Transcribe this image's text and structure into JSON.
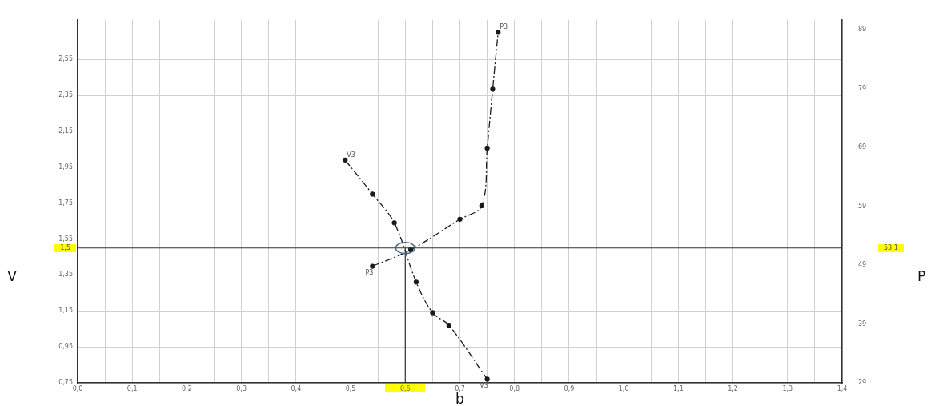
{
  "chart_data": {
    "type": "line",
    "xlabel": "b",
    "ylabel": "V",
    "y2label": "P",
    "xlim": [
      0,
      1.4
    ],
    "xticks": [
      {
        "value": 0,
        "label": "0,0"
      },
      {
        "value": 0.05,
        "label": null
      },
      {
        "value": 0.1,
        "label": "0,1"
      },
      {
        "value": 0.15,
        "label": null
      },
      {
        "value": 0.2,
        "label": "0,2"
      },
      {
        "value": 0.25,
        "label": null
      },
      {
        "value": 0.3,
        "label": "0,3"
      },
      {
        "value": 0.35,
        "label": null
      },
      {
        "value": 0.4,
        "label": "0,4"
      },
      {
        "value": 0.45,
        "label": null
      },
      {
        "value": 0.5,
        "label": "0,5"
      },
      {
        "value": 0.55,
        "label": null
      },
      {
        "value": 0.6,
        "label": "0,6"
      },
      {
        "value": 0.65,
        "label": null
      },
      {
        "value": 0.7,
        "label": "0,7"
      },
      {
        "value": 0.75,
        "label": null
      },
      {
        "value": 0.8,
        "label": "0,8"
      },
      {
        "value": 0.85,
        "label": null
      },
      {
        "value": 0.9,
        "label": "0,9"
      },
      {
        "value": 0.95,
        "label": null
      },
      {
        "value": 1.0,
        "label": "1,0"
      },
      {
        "value": 1.05,
        "label": null
      },
      {
        "value": 1.1,
        "label": "1,1"
      },
      {
        "value": 1.15,
        "label": null
      },
      {
        "value": 1.2,
        "label": "1,2"
      },
      {
        "value": 1.25,
        "label": null
      },
      {
        "value": 1.3,
        "label": "1,3"
      },
      {
        "value": 1.35,
        "label": null
      },
      {
        "value": 1.4,
        "label": "1,4"
      }
    ],
    "ylim": [
      0.75,
      2.77
    ],
    "yticks": [
      {
        "value": 0.75,
        "label": "0,75"
      },
      {
        "value": 0.95,
        "label": "0,95"
      },
      {
        "value": 1.15,
        "label": "1,15"
      },
      {
        "value": 1.35,
        "label": "1,35"
      },
      {
        "value": 1.55,
        "label": "1,55"
      },
      {
        "value": 1.75,
        "label": "1,75"
      },
      {
        "value": 1.95,
        "label": "1,95"
      },
      {
        "value": 2.15,
        "label": "2,15"
      },
      {
        "value": 2.35,
        "label": "2,35"
      },
      {
        "value": 2.55,
        "label": "2,55"
      }
    ],
    "y2lim": [
      29,
      90.7
    ],
    "y2ticks": [
      29,
      39,
      49,
      59,
      69,
      79,
      89
    ],
    "grid": true,
    "legend": false,
    "marker": "circle",
    "line_style": "dashed",
    "ref_lines": [
      {
        "axis": "y",
        "value": 1.5,
        "label": "1,5",
        "color": "#333333"
      },
      {
        "axis": "x",
        "value": 0.6,
        "color": "#333333"
      }
    ],
    "annotations": [
      "53,1"
    ],
    "series": [
      {
        "name": "V3",
        "color": "#1a1a1a",
        "x": [
          0.49,
          0.54,
          0.58,
          0.62,
          0.65,
          0.68,
          0.75
        ],
        "values": [
          1.99,
          1.8,
          1.64,
          1.31,
          1.14,
          1.07,
          0.77
        ]
      },
      {
        "name": "P3",
        "color": "#1a1a1a",
        "axis": "y2",
        "x": [
          0.54,
          0.61,
          0.7,
          0.74,
          0.75,
          0.76,
          0.77
        ],
        "values": [
          48.8,
          51.6,
          56.8,
          59.1,
          68.9,
          78.9,
          88.6
        ]
      }
    ]
  }
}
